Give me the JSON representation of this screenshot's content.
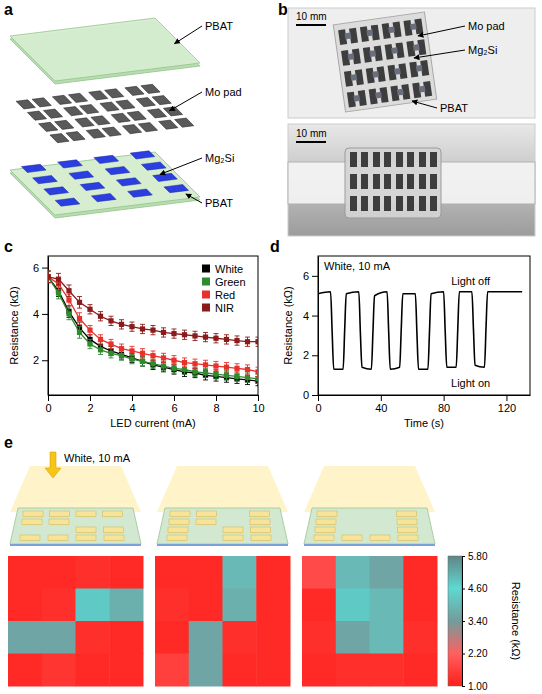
{
  "diagram": {
    "panel": "a",
    "labels": [
      "PBAT",
      "Mo pad",
      "Mg₂Si",
      "PBAT"
    ]
  },
  "photos": {
    "panel": "b",
    "top": {
      "scale_bar": "10 mm",
      "labels": [
        "Mo pad",
        "Mg₂Si",
        "PBAT"
      ]
    },
    "bottom": {
      "scale_bar": "10 mm"
    }
  },
  "chart_data": [
    {
      "type": "line",
      "panel": "c",
      "xlabel": "LED current (mA)",
      "ylabel": "Resistance (kΩ)",
      "x": [
        0,
        0.5,
        1,
        1.5,
        2,
        2.5,
        3,
        3.5,
        4,
        4.5,
        5,
        5.5,
        6,
        6.5,
        7,
        7.5,
        8,
        8.5,
        9,
        9.5,
        10
      ],
      "xlim": [
        0,
        10
      ],
      "xticks": [
        0,
        2,
        4,
        6,
        8,
        10
      ],
      "ylim": [
        0.5,
        6.5
      ],
      "yticks": [
        2,
        4,
        6
      ],
      "legend": "top-right",
      "marker": "square",
      "series": [
        {
          "name": "White",
          "color": "#000000",
          "values": [
            5.6,
            5.0,
            4.1,
            3.4,
            2.9,
            2.6,
            2.4,
            2.25,
            2.1,
            1.95,
            1.8,
            1.7,
            1.6,
            1.5,
            1.45,
            1.35,
            1.3,
            1.25,
            1.2,
            1.15,
            1.1
          ],
          "errors": [
            0.25,
            0.25,
            0.25,
            0.25,
            0.2,
            0.2,
            0.2,
            0.2,
            0.2,
            0.2,
            0.2,
            0.2,
            0.2,
            0.2,
            0.2,
            0.2,
            0.2,
            0.2,
            0.2,
            0.2,
            0.2
          ]
        },
        {
          "name": "Green",
          "color": "#2e8b2e",
          "values": [
            5.6,
            4.9,
            4.0,
            3.2,
            2.7,
            2.45,
            2.3,
            2.2,
            2.05,
            1.95,
            1.85,
            1.75,
            1.65,
            1.6,
            1.5,
            1.45,
            1.4,
            1.35,
            1.3,
            1.25,
            1.2
          ],
          "errors": [
            0.25,
            0.25,
            0.25,
            0.25,
            0.2,
            0.2,
            0.2,
            0.2,
            0.2,
            0.2,
            0.2,
            0.2,
            0.2,
            0.2,
            0.2,
            0.2,
            0.2,
            0.2,
            0.2,
            0.2,
            0.2
          ]
        },
        {
          "name": "Red",
          "color": "#e8312a",
          "values": [
            5.6,
            5.3,
            4.6,
            3.8,
            3.3,
            2.9,
            2.7,
            2.5,
            2.4,
            2.3,
            2.2,
            2.1,
            2.0,
            1.9,
            1.85,
            1.8,
            1.75,
            1.7,
            1.65,
            1.6,
            1.5
          ],
          "errors": [
            0.25,
            0.25,
            0.25,
            0.25,
            0.2,
            0.2,
            0.2,
            0.2,
            0.2,
            0.2,
            0.2,
            0.2,
            0.2,
            0.2,
            0.2,
            0.2,
            0.2,
            0.2,
            0.2,
            0.2,
            0.2
          ]
        },
        {
          "name": "NIR",
          "color": "#8b1a1a",
          "values": [
            5.6,
            5.5,
            5.0,
            4.5,
            4.2,
            3.9,
            3.7,
            3.55,
            3.45,
            3.35,
            3.3,
            3.2,
            3.15,
            3.1,
            3.05,
            3.0,
            2.95,
            2.9,
            2.85,
            2.8,
            2.8
          ],
          "errors": [
            0.25,
            0.25,
            0.25,
            0.25,
            0.2,
            0.2,
            0.2,
            0.2,
            0.2,
            0.2,
            0.2,
            0.2,
            0.2,
            0.2,
            0.2,
            0.2,
            0.2,
            0.2,
            0.2,
            0.2,
            0.2
          ]
        }
      ]
    },
    {
      "type": "line",
      "panel": "d",
      "xlabel": "Time (s)",
      "ylabel": "Resistance (kΩ)",
      "x": [
        0,
        8,
        9,
        10,
        16,
        17,
        18,
        26,
        27,
        28,
        34,
        35,
        36,
        44,
        45,
        46,
        52,
        53,
        54,
        62,
        63,
        64,
        70,
        71,
        72,
        80,
        81,
        82,
        88,
        89,
        90,
        98,
        99,
        100,
        106,
        107,
        108,
        130
      ],
      "values": [
        5.1,
        5.2,
        3.2,
        1.3,
        1.3,
        3.3,
        5.1,
        5.2,
        3.1,
        1.4,
        1.3,
        3.2,
        5.0,
        5.2,
        3.2,
        1.3,
        1.4,
        3.3,
        5.1,
        5.1,
        3.1,
        1.3,
        1.3,
        3.2,
        5.1,
        5.2,
        3.2,
        1.4,
        1.4,
        3.3,
        5.2,
        5.2,
        3.3,
        1.5,
        1.4,
        3.4,
        5.2,
        5.2
      ],
      "color": "#000000",
      "xlim": [
        0,
        135
      ],
      "xticks": [
        0,
        40,
        80,
        120
      ],
      "ylim": [
        0,
        7
      ],
      "yticks": [
        0,
        2,
        4,
        6
      ],
      "annotations": [
        "White, 10 mA",
        "Light off",
        "Light on"
      ]
    },
    {
      "type": "heatmap",
      "panel": "e",
      "annotation": "White, 10 mA",
      "maps": [
        [
          [
            1.2,
            1.2,
            1.3,
            1.2
          ],
          [
            1.2,
            1.3,
            4.8,
            3.8
          ],
          [
            3.6,
            3.6,
            1.3,
            1.2
          ],
          [
            1.2,
            1.4,
            1.2,
            1.2
          ]
        ],
        [
          [
            1.2,
            1.2,
            4.0,
            1.2
          ],
          [
            1.3,
            1.2,
            3.8,
            1.2
          ],
          [
            1.2,
            3.6,
            1.3,
            1.2
          ],
          [
            1.6,
            3.6,
            1.2,
            1.2
          ]
        ],
        [
          [
            1.8,
            4.0,
            3.6,
            1.2
          ],
          [
            1.2,
            4.8,
            4.0,
            1.2
          ],
          [
            1.3,
            3.6,
            4.0,
            1.3
          ],
          [
            1.2,
            1.3,
            1.3,
            1.2
          ]
        ]
      ],
      "zlim": [
        1.0,
        5.8
      ],
      "zticks": [
        {
          "value": 1.0,
          "label": "1.00"
        },
        {
          "value": 2.2,
          "label": "2.20"
        },
        {
          "value": 3.4,
          "label": "3.40"
        },
        {
          "value": 4.6,
          "label": "4.60"
        },
        {
          "value": 5.8,
          "label": "5.80"
        }
      ],
      "colorbar_title": "Resistance (kΩ)"
    }
  ]
}
